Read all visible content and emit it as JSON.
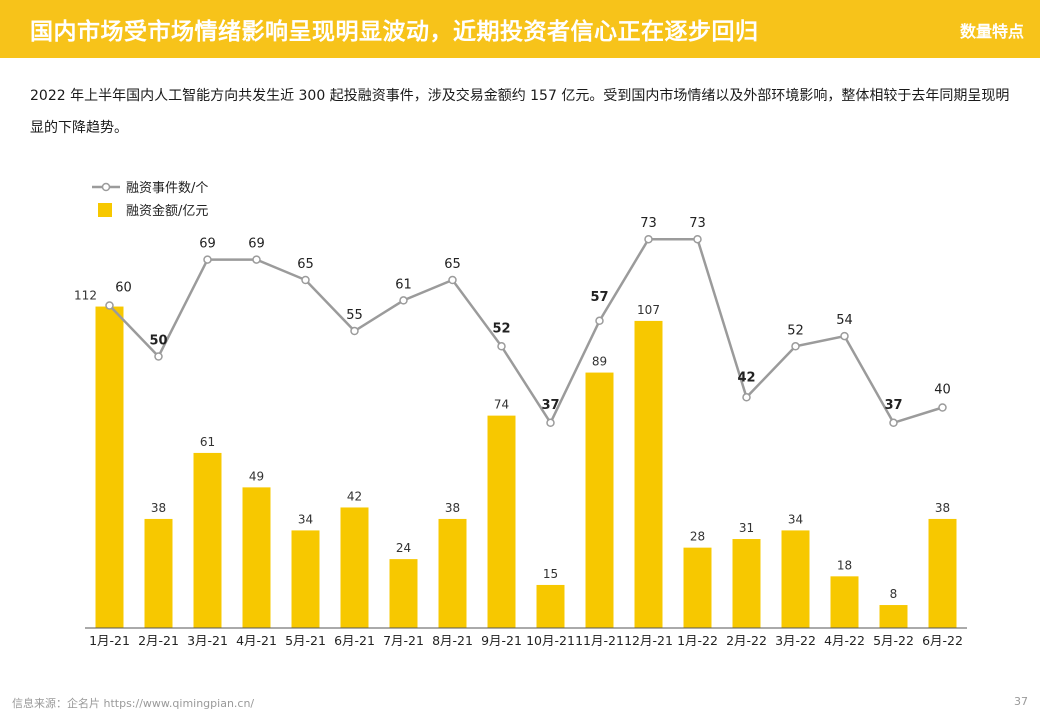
{
  "header": {
    "title": "国内市场受市场情绪影响呈现明显波动，近期投资者信心正在逐步回归",
    "tag": "数量特点"
  },
  "summary": "2022 年上半年国内人工智能方向共发生近 300 起投融资事件，涉及交易金额约 157 亿元。受到国内市场情绪以及外部环境影响，整体相较于去年同期呈现明显的下降趋势。",
  "footer": {
    "source": "信息来源：企名片 https://www.qimingpian.cn/",
    "page": "37"
  },
  "colors": {
    "accent": "#f7c31a",
    "bar": "#f7c800",
    "line": "#9b9b9b"
  },
  "chart_data": {
    "type": "bar+line",
    "categories": [
      "1月-21",
      "2月-21",
      "3月-21",
      "4月-21",
      "5月-21",
      "6月-21",
      "7月-21",
      "8月-21",
      "9月-21",
      "10月-21",
      "11月-21",
      "12月-21",
      "1月-22",
      "2月-22",
      "3月-22",
      "4月-22",
      "5月-22",
      "6月-22"
    ],
    "series": [
      {
        "name": "融资金额/亿元",
        "type": "bar",
        "values": [
          112,
          38,
          61,
          49,
          34,
          42,
          24,
          38,
          74,
          15,
          89,
          107,
          28,
          31,
          34,
          18,
          8,
          38
        ]
      },
      {
        "name": "融资事件数/个",
        "type": "line",
        "values": [
          60,
          50,
          69,
          69,
          65,
          55,
          61,
          65,
          52,
          37,
          57,
          73,
          73,
          42,
          52,
          54,
          37,
          40
        ]
      }
    ],
    "legend_position": "top-left",
    "grid": false
  }
}
